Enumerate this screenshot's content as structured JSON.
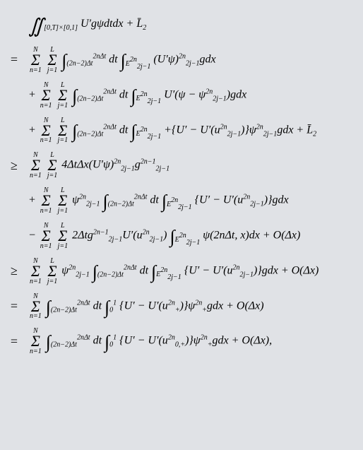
{
  "background_color": "#e0e2e6",
  "text_color": "#000000",
  "font_family": "Times New Roman",
  "base_fontsize": 16,
  "relation_fontsize": 18,
  "subscript_fontsize": 10,
  "integral_fontsize": 26,
  "sum_fontsize": 22,
  "lines": [
    {
      "relation": "",
      "indent": true,
      "expression": "∬_{[0,T]×[0,1]} U'gψdtdx + L̄_2",
      "rendered_parts": {
        "integral": "∬",
        "integral_sub": "[0,T]×[0,1]",
        "body": "U′gψdtdx + L̄",
        "body_sub": "2"
      }
    },
    {
      "relation": "=",
      "indent": false,
      "expression": "Σ_{n=1}^N Σ_{j=1}^L ∫_{(2n-2)Δt}^{2nΔt} dt ∫_{E_{2j-1}^{2n}} (U'ψ)_{2j-1}^{2n} gdx",
      "rendered_parts": {
        "sum1_top": "N",
        "sum1_bot": "n=1",
        "sum2_top": "L",
        "sum2_bot": "j=1",
        "int1_top": "2nΔt",
        "int1_bot": "(2n−2)Δt",
        "mid1": "dt",
        "int2_sub": "E",
        "int2_sub_sub": "2j−1",
        "int2_sub_sup": "2n",
        "body": "(U′ψ)",
        "body_sub": "2j−1",
        "body_sup": "2n",
        "tail": "gdx"
      }
    },
    {
      "relation": "",
      "indent": true,
      "expression": "+ Σ_{n=1}^N Σ_{j=1}^L ∫_{(2n-2)Δt}^{2nΔt} dt ∫_{E_{2j-1}^{2n}} U'(ψ − ψ_{2j-1}^{2n})gdx",
      "rendered_parts": {
        "prefix": "+ ",
        "sum1_top": "N",
        "sum1_bot": "n=1",
        "sum2_top": "L",
        "sum2_bot": "j=1",
        "int1_top": "2nΔt",
        "int1_bot": "(2n−2)Δt",
        "mid1": "dt",
        "int2_sub": "E",
        "int2_sub_sub": "2j−1",
        "int2_sub_sup": "2n",
        "body": "U′(ψ − ψ",
        "body_sub": "2j−1",
        "body_sup": "2n",
        "tail": ")gdx"
      }
    },
    {
      "relation": "",
      "indent": true,
      "expression": "+ Σ_{n=1}^N Σ_{j=1}^L ∫_{(2n-2)Δt}^{2nΔt} dt ∫_{E_{2j-1}^{2n}} +{U' − U'(u_{2j-1}^{2n})}ψ_{2j-1}^{2n} gdx + L̄_2",
      "rendered_parts": {
        "prefix": "+ ",
        "sum1_top": "N",
        "sum1_bot": "n=1",
        "sum2_top": "L",
        "sum2_bot": "j=1",
        "int1_top": "2nΔt",
        "int1_bot": "(2n−2)Δt",
        "mid1": "dt",
        "int2_sub": "E",
        "int2_sub_sub": "2j−1",
        "int2_sub_sup": "2n",
        "body": "+{U′ − U′(u",
        "u_sub": "2j−1",
        "u_sup": "2n",
        "mid2": ")}ψ",
        "psi_sub": "2j−1",
        "psi_sup": "2n",
        "tail": "gdx + L̄",
        "tail_sub": "2"
      }
    },
    {
      "relation": "≥",
      "indent": false,
      "expression": "Σ_{n=1}^N Σ_{j=1}^L 4ΔtΔx(U'ψ)_{2j-1}^{2n} g_{2j-1}^{2n-1}",
      "rendered_parts": {
        "sum1_top": "N",
        "sum1_bot": "n=1",
        "sum2_top": "L",
        "sum2_bot": "j=1",
        "body": "4ΔtΔx(U′ψ)",
        "up_sub": "2j−1",
        "up_sup": "2n",
        "g": "g",
        "g_sub": "2j−1",
        "g_sup": "2n−1"
      }
    },
    {
      "relation": "",
      "indent": true,
      "expression": "+ Σ_{n=1}^N Σ_{j=1}^L ψ_{2j-1}^{2n} ∫_{(2n-2)Δt}^{2nΔt} dt ∫_{E_{2j-1}^{2n}} {U' − U'(u_{2j-1}^{2n})}gdx",
      "rendered_parts": {
        "prefix": "+ ",
        "sum1_top": "N",
        "sum1_bot": "n=1",
        "sum2_top": "L",
        "sum2_bot": "j=1",
        "psi": "ψ",
        "psi_sub": "2j−1",
        "psi_sup": "2n",
        "int1_top": "2nΔt",
        "int1_bot": "(2n−2)Δt",
        "mid1": "dt",
        "int2_sub": "E",
        "int2_sub_sub": "2j−1",
        "int2_sub_sup": "2n",
        "body": "{U′ − U′(u",
        "u_sub": "2j−1",
        "u_sup": "2n",
        "tail": ")}gdx"
      }
    },
    {
      "relation": "",
      "indent": true,
      "expression": "− Σ_{n=1}^N Σ_{j=1}^L 2Δtg_{2j-1}^{2n-1} U'(u_{2j-1}^{2n}) ∫_{E_{2j-1}^{2n}} ψ(2nΔt,x)dx + O(Δx)",
      "rendered_parts": {
        "prefix": "− ",
        "sum1_top": "N",
        "sum1_bot": "n=1",
        "sum2_top": "L",
        "sum2_bot": "j=1",
        "body1": "2Δtg",
        "g_sub": "2j−1",
        "g_sup": "2n−1",
        "body2": "U′(u",
        "u_sub": "2j−1",
        "u_sup": "2n",
        "body3": ")",
        "int2_sub": "E",
        "int2_sub_sub": "2j−1",
        "int2_sub_sup": "2n",
        "tail": "ψ(2nΔt, x)dx + O(Δx)"
      }
    },
    {
      "relation": "≥",
      "indent": false,
      "expression": "Σ_{n=1}^N Σ_{j=1}^L ψ_{2j-1}^{2n} ∫_{(2n-2)Δt}^{2nΔt} dt ∫_{E_{2j-1}^{2n}} {U' − U'(u_{2j-1}^{2n})}gdx + O(Δx)",
      "rendered_parts": {
        "sum1_top": "N",
        "sum1_bot": "n=1",
        "sum2_top": "L",
        "sum2_bot": "j=1",
        "psi": "ψ",
        "psi_sub": "2j−1",
        "psi_sup": "2n",
        "int1_top": "2nΔt",
        "int1_bot": "(2n−2)Δt",
        "mid1": "dt",
        "int2_sub": "E",
        "int2_sub_sub": "2j−1",
        "int2_sub_sup": "2n",
        "body": "{U′ − U′(u",
        "u_sub": "2j−1",
        "u_sup": "2n",
        "tail": ")}gdx + O(Δx)"
      }
    },
    {
      "relation": "=",
      "indent": false,
      "expression": "Σ_{n=1}^N ∫_{(2n-2)Δt}^{2nΔt} dt ∫_0^1 {U' − U'(u_+^{2n})}ψ_+^{2n} gdx + O(Δx)",
      "rendered_parts": {
        "sum1_top": "N",
        "sum1_bot": "n=1",
        "int1_top": "2nΔt",
        "int1_bot": "(2n−2)Δt",
        "mid1": "dt",
        "int2_top": "1",
        "int2_bot": "0",
        "body": "{U′ − U′(u",
        "u_sub": "+",
        "u_sup": "2n",
        "mid2": ")}ψ",
        "psi_sub": "+",
        "psi_sup": "2n",
        "tail": "gdx + O(Δx)"
      }
    },
    {
      "relation": "=",
      "indent": false,
      "expression": "Σ_{n=1}^N ∫_{(2n-2)Δt}^{2nΔt} dt ∫_0^1 {U' − U'(u_{0,+}^{2n})}ψ_+^{2n} gdx + O(Δx),",
      "rendered_parts": {
        "sum1_top": "N",
        "sum1_bot": "n=1",
        "int1_top": "2nΔt",
        "int1_bot": "(2n−2)Δt",
        "mid1": "dt",
        "int2_top": "1",
        "int2_bot": "0",
        "body": "{U′ − U′(u",
        "u_sub": "0,+",
        "u_sup": "2n",
        "mid2": ")}ψ",
        "psi_sub": "+",
        "psi_sup": "2n",
        "tail": "gdx + O(Δx),"
      }
    }
  ]
}
